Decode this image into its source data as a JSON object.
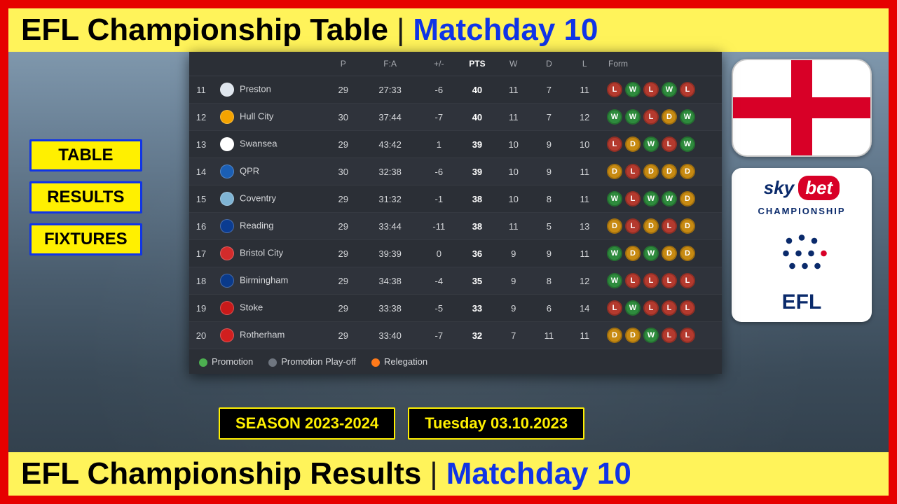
{
  "colors": {
    "frame_red": "#e60000",
    "yellow": "#fff35a",
    "blue_text": "#1034e6",
    "card_bg": "#2b2f36",
    "promotion": "#4caf50",
    "playoff": "#6f7680",
    "relegation": "#ff7a1a",
    "form": {
      "W": "#2e8b3d",
      "D": "#c78a12",
      "L": "#b43a2e"
    }
  },
  "header": {
    "left": "EFL Championship Table",
    "right": "Matchday 10"
  },
  "footer": {
    "left": "EFL Championship Results",
    "right": "Matchday 10"
  },
  "left_chips": [
    "TABLE",
    "RESULTS",
    "FIXTURES"
  ],
  "black_chips": [
    "SEASON 2023-2024",
    "Tuesday 03.10.2023"
  ],
  "efl_logo": {
    "line1": "sky",
    "pill": "bet",
    "line2": "CHAMPIONSHIP",
    "line3": "EFL"
  },
  "table": {
    "columns": [
      "",
      "",
      "P",
      "F:A",
      "+/-",
      "PTS",
      "W",
      "D",
      "L",
      "Form"
    ],
    "legend": [
      {
        "label": "Promotion",
        "color": "#4caf50"
      },
      {
        "label": "Promotion Play-off",
        "color": "#6f7680"
      },
      {
        "label": "Relegation",
        "color": "#ff7a1a"
      }
    ],
    "rows": [
      {
        "pos": 11,
        "team": "Preston",
        "crest": "#dfe6ee",
        "p": 29,
        "fa": "27:33",
        "gd": "-6",
        "pts": 40,
        "w": 11,
        "d": 7,
        "l": 11,
        "form": [
          "L",
          "W",
          "L",
          "W",
          "L"
        ]
      },
      {
        "pos": 12,
        "team": "Hull City",
        "crest": "#f4a300",
        "p": 30,
        "fa": "37:44",
        "gd": "-7",
        "pts": 40,
        "w": 11,
        "d": 7,
        "l": 12,
        "form": [
          "W",
          "W",
          "L",
          "D",
          "W"
        ]
      },
      {
        "pos": 13,
        "team": "Swansea",
        "crest": "#ffffff",
        "p": 29,
        "fa": "43:42",
        "gd": "1",
        "pts": 39,
        "w": 10,
        "d": 9,
        "l": 10,
        "form": [
          "L",
          "D",
          "W",
          "L",
          "W"
        ]
      },
      {
        "pos": 14,
        "team": "QPR",
        "crest": "#1b5fb5",
        "p": 30,
        "fa": "32:38",
        "gd": "-6",
        "pts": 39,
        "w": 10,
        "d": 9,
        "l": 11,
        "form": [
          "D",
          "L",
          "D",
          "D",
          "D"
        ]
      },
      {
        "pos": 15,
        "team": "Coventry",
        "crest": "#7fb4d4",
        "p": 29,
        "fa": "31:32",
        "gd": "-1",
        "pts": 38,
        "w": 10,
        "d": 8,
        "l": 11,
        "form": [
          "W",
          "L",
          "W",
          "W",
          "D"
        ]
      },
      {
        "pos": 16,
        "team": "Reading",
        "crest": "#0b3c91",
        "p": 29,
        "fa": "33:44",
        "gd": "-11",
        "pts": 38,
        "w": 11,
        "d": 5,
        "l": 13,
        "form": [
          "D",
          "L",
          "D",
          "L",
          "D"
        ]
      },
      {
        "pos": 17,
        "team": "Bristol City",
        "crest": "#d32b2b",
        "p": 29,
        "fa": "39:39",
        "gd": "0",
        "pts": 36,
        "w": 9,
        "d": 9,
        "l": 11,
        "form": [
          "W",
          "D",
          "W",
          "D",
          "D"
        ]
      },
      {
        "pos": 18,
        "team": "Birmingham",
        "crest": "#0a3a8a",
        "p": 29,
        "fa": "34:38",
        "gd": "-4",
        "pts": 35,
        "w": 9,
        "d": 8,
        "l": 12,
        "form": [
          "W",
          "L",
          "L",
          "L",
          "L"
        ]
      },
      {
        "pos": 19,
        "team": "Stoke",
        "crest": "#c81a1a",
        "p": 29,
        "fa": "33:38",
        "gd": "-5",
        "pts": 33,
        "w": 9,
        "d": 6,
        "l": 14,
        "form": [
          "L",
          "W",
          "L",
          "L",
          "L"
        ]
      },
      {
        "pos": 20,
        "team": "Rotherham",
        "crest": "#d11f1f",
        "p": 29,
        "fa": "33:40",
        "gd": "-7",
        "pts": 32,
        "w": 7,
        "d": 11,
        "l": 11,
        "form": [
          "D",
          "D",
          "W",
          "L",
          "L"
        ]
      }
    ]
  }
}
